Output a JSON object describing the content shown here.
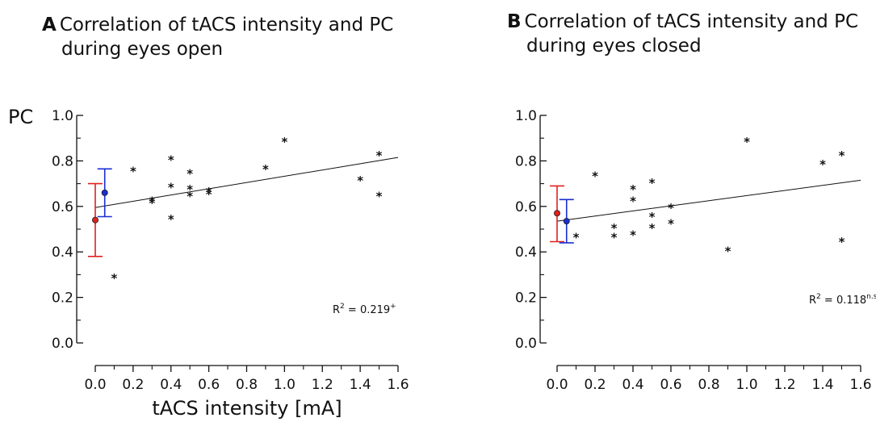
{
  "chart_data": [
    {
      "type": "scatter",
      "panel": "A",
      "title": "Correlation of tACS intensity and PC during eyes open",
      "title_line1": "Correlation of tACS intensity and PC",
      "title_line2": "during eyes open",
      "ylabel": "PC",
      "xlabel": "tACS intensity [mA]",
      "xlim": [
        0,
        1.6
      ],
      "ylim": [
        0,
        1.0
      ],
      "xticks": [
        "0.0",
        "0.2",
        "0.4",
        "0.6",
        "0.8",
        "1.0",
        "1.2",
        "1.4",
        "1.6"
      ],
      "yticks": [
        "0.0",
        "0.2",
        "0.4",
        "0.6",
        "0.8",
        "1.0"
      ],
      "points": [
        [
          0.1,
          0.29
        ],
        [
          0.2,
          0.76
        ],
        [
          0.3,
          0.62
        ],
        [
          0.3,
          0.63
        ],
        [
          0.4,
          0.55
        ],
        [
          0.4,
          0.69
        ],
        [
          0.4,
          0.81
        ],
        [
          0.5,
          0.65
        ],
        [
          0.5,
          0.68
        ],
        [
          0.5,
          0.75
        ],
        [
          0.6,
          0.66
        ],
        [
          0.6,
          0.67
        ],
        [
          0.9,
          0.77
        ],
        [
          1.0,
          0.89
        ],
        [
          1.4,
          0.72
        ],
        [
          1.5,
          0.65
        ],
        [
          1.5,
          0.83
        ]
      ],
      "regression": {
        "x": [
          0.0,
          1.6
        ],
        "y": [
          0.595,
          0.815
        ]
      },
      "annotation": {
        "text": "R",
        "sup": "2",
        "rest": " = 0.219",
        "sup2": "+"
      },
      "summary": [
        {
          "color": "#e02020",
          "x": 0.0,
          "mean": 0.54,
          "low": 0.38,
          "high": 0.7
        },
        {
          "color": "#1a2ed0",
          "x": 0.05,
          "mean": 0.66,
          "low": 0.555,
          "high": 0.765
        }
      ]
    },
    {
      "type": "scatter",
      "panel": "B",
      "title": "Correlation of tACS intensity and PC during eyes closed",
      "title_line1": "Correlation of tACS intensity and PC",
      "title_line2": "during eyes closed",
      "ylabel": "",
      "xlabel": "",
      "xlim": [
        0,
        1.6
      ],
      "ylim": [
        0,
        1.0
      ],
      "xticks": [
        "0.0",
        "0.2",
        "0.4",
        "0.6",
        "0.8",
        "1.0",
        "1.2",
        "1.4",
        "1.6"
      ],
      "yticks": [
        "0.0",
        "0.2",
        "0.4",
        "0.6",
        "0.8",
        "1.0"
      ],
      "points": [
        [
          0.1,
          0.47
        ],
        [
          0.2,
          0.74
        ],
        [
          0.3,
          0.47
        ],
        [
          0.3,
          0.51
        ],
        [
          0.4,
          0.48
        ],
        [
          0.4,
          0.63
        ],
        [
          0.4,
          0.68
        ],
        [
          0.5,
          0.51
        ],
        [
          0.5,
          0.56
        ],
        [
          0.5,
          0.71
        ],
        [
          0.6,
          0.53
        ],
        [
          0.6,
          0.6
        ],
        [
          0.9,
          0.41
        ],
        [
          1.0,
          0.89
        ],
        [
          1.4,
          0.79
        ],
        [
          1.5,
          0.45
        ],
        [
          1.5,
          0.83
        ]
      ],
      "regression": {
        "x": [
          0.0,
          1.6
        ],
        "y": [
          0.535,
          0.715
        ]
      },
      "annotation": {
        "text": "R",
        "sup": "2",
        "rest": " = 0.118",
        "sup2": "n.s."
      },
      "summary": [
        {
          "color": "#e02020",
          "x": 0.0,
          "mean": 0.57,
          "low": 0.445,
          "high": 0.69
        },
        {
          "color": "#1a2ed0",
          "x": 0.05,
          "mean": 0.535,
          "low": 0.44,
          "high": 0.63
        }
      ]
    }
  ]
}
